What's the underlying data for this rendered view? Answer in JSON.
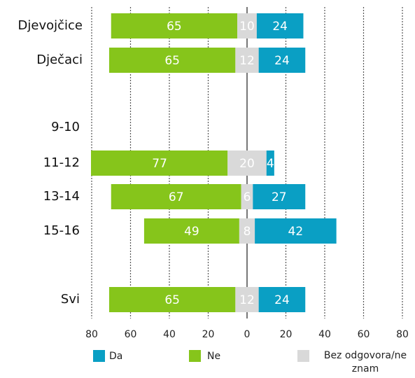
{
  "chart_data": {
    "type": "diverging_bar",
    "categories": [
      "Djevojčice",
      "Dječaci",
      null,
      "9-10",
      "11-12",
      "13-14",
      "15-16",
      null,
      "Svi"
    ],
    "series": [
      {
        "name": "Da",
        "color": "#0a9fc4",
        "values": [
          24,
          24,
          null,
          null,
          4,
          27,
          42,
          null,
          24
        ]
      },
      {
        "name": "Ne",
        "color": "#86c51b",
        "values": [
          65,
          65,
          null,
          null,
          77,
          67,
          49,
          null,
          65
        ]
      },
      {
        "name": "Bez odgovora/ne znam",
        "color": "#d9d9d9",
        "values": [
          10,
          12,
          null,
          null,
          20,
          6,
          8,
          null,
          12
        ]
      }
    ],
    "xlim": [
      -80,
      80
    ],
    "xticks": [
      {
        "value": -80,
        "label": "80"
      },
      {
        "value": -60,
        "label": "60"
      },
      {
        "value": -40,
        "label": "40"
      },
      {
        "value": -20,
        "label": "20"
      },
      0,
      20,
      40,
      60,
      80
    ],
    "grid": true,
    "legend": "bottom"
  }
}
